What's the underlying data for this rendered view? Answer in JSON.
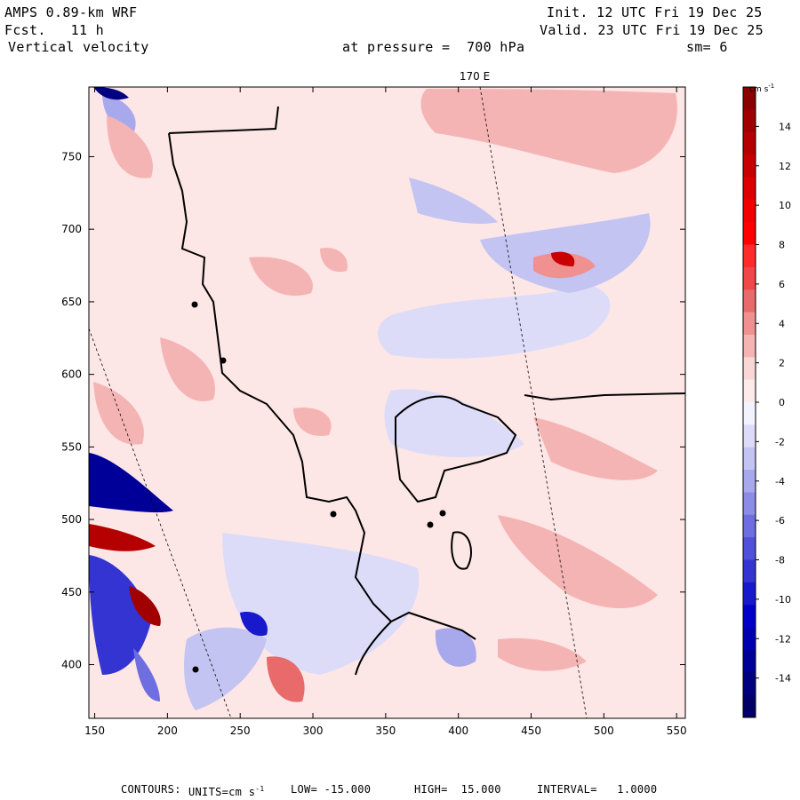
{
  "header": {
    "model": "AMPS 0.89-km WRF",
    "forecast": "Fcst.   11 h",
    "field": "Vertical velocity",
    "init": "Init. 12 UTC Fri 19 Dec 25",
    "valid": "Valid. 23 UTC Fri 19 Dec 25",
    "pressure": "at pressure =  700 hPa",
    "smoothing": "sm= 6"
  },
  "map": {
    "meridian_label": "170 E",
    "x_ticks": [
      "150",
      "200",
      "250",
      "300",
      "350",
      "400",
      "450",
      "500",
      "550"
    ],
    "y_ticks": [
      "750",
      "700",
      "650",
      "600",
      "550",
      "500",
      "450",
      "400"
    ],
    "x_range": [
      146,
      556
    ],
    "y_range": [
      363,
      798
    ],
    "colors": {
      "background_positive": "#fde6e6",
      "coastline": "#000000"
    }
  },
  "colorbar": {
    "unit_label": "cm s",
    "unit_exp": "-1",
    "labels": [
      "14",
      "12",
      "10",
      "8",
      "6",
      "4",
      "2",
      "0",
      "-2",
      "-4",
      "-6",
      "-8",
      "-10",
      "-12",
      "-14"
    ],
    "colors": [
      "#8b0000",
      "#a00000",
      "#b40000",
      "#c80000",
      "#dc0000",
      "#f00000",
      "#ff0000",
      "#ff2b2b",
      "#f04848",
      "#e86a6a",
      "#f09090",
      "#f5b4b4",
      "#fad7d7",
      "#fdeaea",
      "#f3f3ff",
      "#dcdcf8",
      "#c4c4f2",
      "#a8a8ec",
      "#8c8ce6",
      "#6e6ee0",
      "#5050da",
      "#3434d2",
      "#1818cc",
      "#0000c8",
      "#0000b0",
      "#000098",
      "#000080",
      "#000068"
    ]
  },
  "footer": {
    "contours": "CONTOURS:",
    "units_label": "UNITS=cm s",
    "units_exp": "-1",
    "low": "LOW= -15.000",
    "high": "HIGH=  15.000",
    "interval": "INTERVAL=   1.0000"
  }
}
